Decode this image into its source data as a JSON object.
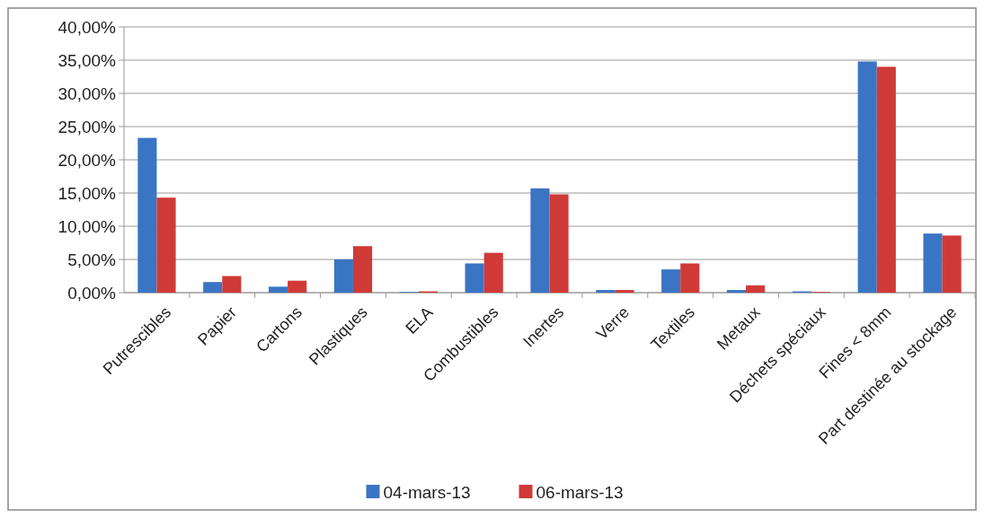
{
  "chart_data": {
    "type": "bar",
    "categories": [
      "Putrescibles",
      "Papier",
      "Cartons",
      "Plastiques",
      "ELA",
      "Combustibles",
      "Inertes",
      "Verre",
      "Textiles",
      "Metaux",
      "Déchets spéciaux",
      "Fines < 8mm",
      "Part destinée au stockage"
    ],
    "series": [
      {
        "name": "04-mars-13",
        "color": "#3a75c4",
        "values": [
          23.3,
          1.6,
          0.9,
          5.0,
          0.1,
          4.4,
          15.7,
          0.4,
          3.5,
          0.4,
          0.2,
          34.8,
          8.9
        ]
      },
      {
        "name": "06-mars-13",
        "color": "#d03a36",
        "values": [
          14.3,
          2.5,
          1.8,
          7.0,
          0.2,
          6.0,
          14.8,
          0.4,
          4.4,
          1.1,
          0.1,
          34.0,
          8.6
        ]
      }
    ],
    "ylim": [
      0,
      40
    ],
    "yticks": [
      {
        "value": 0,
        "label": "0,00%"
      },
      {
        "value": 5,
        "label": "5,00%"
      },
      {
        "value": 10,
        "label": "10,00%"
      },
      {
        "value": 15,
        "label": "15,00%"
      },
      {
        "value": 20,
        "label": "20,00%"
      },
      {
        "value": 25,
        "label": "25,00%"
      },
      {
        "value": 30,
        "label": "30,00%"
      },
      {
        "value": 35,
        "label": "35,00%"
      },
      {
        "value": 40,
        "label": "40,00%"
      }
    ],
    "grid": "y",
    "legend": "bottom"
  }
}
